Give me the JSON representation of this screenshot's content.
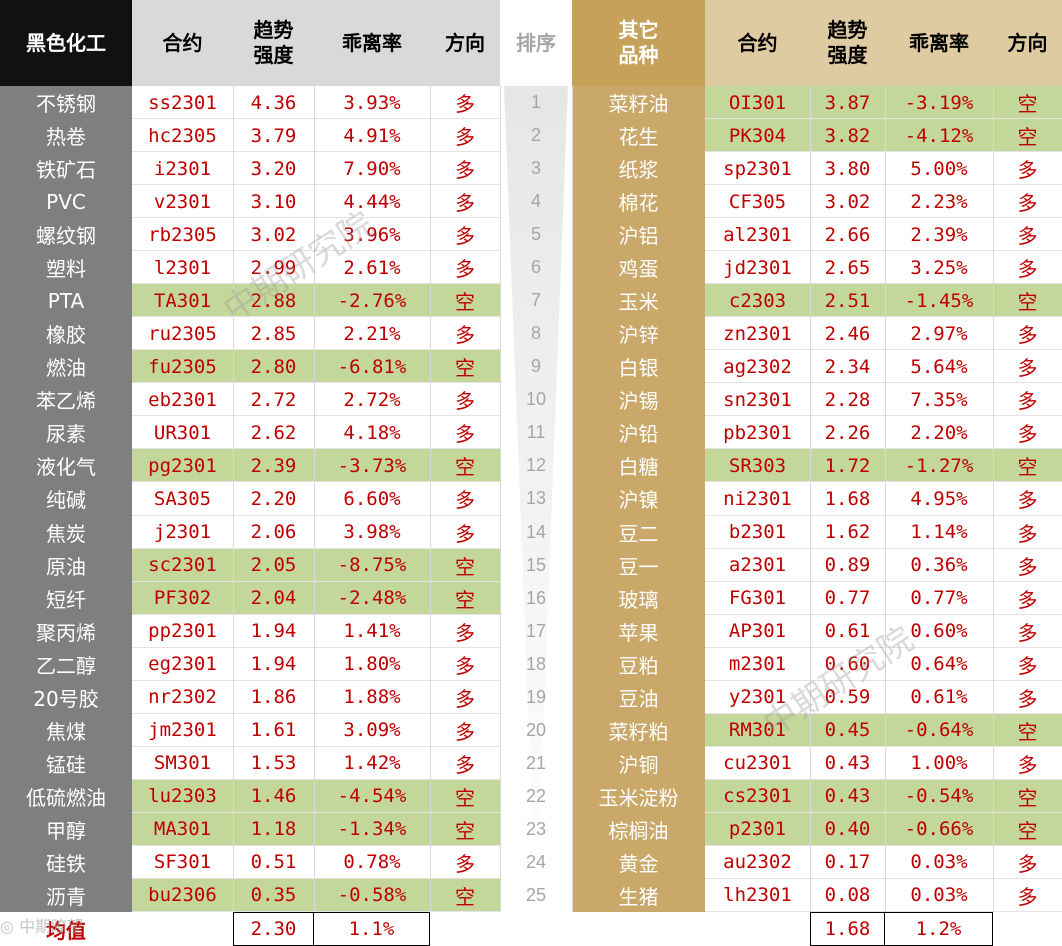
{
  "header": {
    "left_title": "黑色化工",
    "contract": "合约",
    "trend_line1": "趋势",
    "trend_line2": "强度",
    "deviation": "乖离率",
    "direction": "方向",
    "rank": "排序",
    "right_title_line1": "其它",
    "right_title_line2": "品种"
  },
  "left_rows": [
    {
      "name": "不锈钢",
      "contract": "ss2301",
      "strength": "4.36",
      "deviation": "3.93%",
      "direction": "多",
      "short": false
    },
    {
      "name": "热卷",
      "contract": "hc2305",
      "strength": "3.79",
      "deviation": "4.91%",
      "direction": "多",
      "short": false
    },
    {
      "name": "铁矿石",
      "contract": "i2301",
      "strength": "3.20",
      "deviation": "7.90%",
      "direction": "多",
      "short": false
    },
    {
      "name": "PVC",
      "contract": "v2301",
      "strength": "3.10",
      "deviation": "4.44%",
      "direction": "多",
      "short": false
    },
    {
      "name": "螺纹钢",
      "contract": "rb2305",
      "strength": "3.02",
      "deviation": "3.96%",
      "direction": "多",
      "short": false
    },
    {
      "name": "塑料",
      "contract": "l2301",
      "strength": "2.99",
      "deviation": "2.61%",
      "direction": "多",
      "short": false
    },
    {
      "name": "PTA",
      "contract": "TA301",
      "strength": "2.88",
      "deviation": "-2.76%",
      "direction": "空",
      "short": true
    },
    {
      "name": "橡胶",
      "contract": "ru2305",
      "strength": "2.85",
      "deviation": "2.21%",
      "direction": "多",
      "short": false
    },
    {
      "name": "燃油",
      "contract": "fu2305",
      "strength": "2.80",
      "deviation": "-6.81%",
      "direction": "空",
      "short": true
    },
    {
      "name": "苯乙烯",
      "contract": "eb2301",
      "strength": "2.72",
      "deviation": "2.72%",
      "direction": "多",
      "short": false
    },
    {
      "name": "尿素",
      "contract": "UR301",
      "strength": "2.62",
      "deviation": "4.18%",
      "direction": "多",
      "short": false
    },
    {
      "name": "液化气",
      "contract": "pg2301",
      "strength": "2.39",
      "deviation": "-3.73%",
      "direction": "空",
      "short": true
    },
    {
      "name": "纯碱",
      "contract": "SA305",
      "strength": "2.20",
      "deviation": "6.60%",
      "direction": "多",
      "short": false
    },
    {
      "name": "焦炭",
      "contract": "j2301",
      "strength": "2.06",
      "deviation": "3.98%",
      "direction": "多",
      "short": false
    },
    {
      "name": "原油",
      "contract": "sc2301",
      "strength": "2.05",
      "deviation": "-8.75%",
      "direction": "空",
      "short": true
    },
    {
      "name": "短纤",
      "contract": "PF302",
      "strength": "2.04",
      "deviation": "-2.48%",
      "direction": "空",
      "short": true
    },
    {
      "name": "聚丙烯",
      "contract": "pp2301",
      "strength": "1.94",
      "deviation": "1.41%",
      "direction": "多",
      "short": false
    },
    {
      "name": "乙二醇",
      "contract": "eg2301",
      "strength": "1.94",
      "deviation": "1.80%",
      "direction": "多",
      "short": false
    },
    {
      "name": "20号胶",
      "contract": "nr2302",
      "strength": "1.86",
      "deviation": "1.88%",
      "direction": "多",
      "short": false
    },
    {
      "name": "焦煤",
      "contract": "jm2301",
      "strength": "1.61",
      "deviation": "3.09%",
      "direction": "多",
      "short": false
    },
    {
      "name": "锰硅",
      "contract": "SM301",
      "strength": "1.53",
      "deviation": "1.42%",
      "direction": "多",
      "short": false
    },
    {
      "name": "低硫燃油",
      "contract": "lu2303",
      "strength": "1.46",
      "deviation": "-4.54%",
      "direction": "空",
      "short": true
    },
    {
      "name": "甲醇",
      "contract": "MA301",
      "strength": "1.18",
      "deviation": "-1.34%",
      "direction": "空",
      "short": true
    },
    {
      "name": "硅铁",
      "contract": "SF301",
      "strength": "0.51",
      "deviation": "0.78%",
      "direction": "多",
      "short": false
    },
    {
      "name": "沥青",
      "contract": "bu2306",
      "strength": "0.35",
      "deviation": "-0.58%",
      "direction": "空",
      "short": true
    }
  ],
  "ranks": [
    "1",
    "2",
    "3",
    "4",
    "5",
    "6",
    "7",
    "8",
    "9",
    "10",
    "11",
    "12",
    "13",
    "14",
    "15",
    "16",
    "17",
    "18",
    "19",
    "20",
    "21",
    "22",
    "23",
    "24",
    "25"
  ],
  "right_rows": [
    {
      "name": "菜籽油",
      "contract": "OI301",
      "strength": "3.87",
      "deviation": "-3.19%",
      "direction": "空",
      "short": true
    },
    {
      "name": "花生",
      "contract": "PK304",
      "strength": "3.82",
      "deviation": "-4.12%",
      "direction": "空",
      "short": true
    },
    {
      "name": "纸浆",
      "contract": "sp2301",
      "strength": "3.80",
      "deviation": "5.00%",
      "direction": "多",
      "short": false
    },
    {
      "name": "棉花",
      "contract": "CF305",
      "strength": "3.02",
      "deviation": "2.23%",
      "direction": "多",
      "short": false
    },
    {
      "name": "沪铝",
      "contract": "al2301",
      "strength": "2.66",
      "deviation": "2.39%",
      "direction": "多",
      "short": false
    },
    {
      "name": "鸡蛋",
      "contract": "jd2301",
      "strength": "2.65",
      "deviation": "3.25%",
      "direction": "多",
      "short": false
    },
    {
      "name": "玉米",
      "contract": "c2303",
      "strength": "2.51",
      "deviation": "-1.45%",
      "direction": "空",
      "short": true
    },
    {
      "name": "沪锌",
      "contract": "zn2301",
      "strength": "2.46",
      "deviation": "2.97%",
      "direction": "多",
      "short": false
    },
    {
      "name": "白银",
      "contract": "ag2302",
      "strength": "2.34",
      "deviation": "5.64%",
      "direction": "多",
      "short": false
    },
    {
      "name": "沪锡",
      "contract": "sn2301",
      "strength": "2.28",
      "deviation": "7.35%",
      "direction": "多",
      "short": false
    },
    {
      "name": "沪铅",
      "contract": "pb2301",
      "strength": "2.26",
      "deviation": "2.20%",
      "direction": "多",
      "short": false
    },
    {
      "name": "白糖",
      "contract": "SR303",
      "strength": "1.72",
      "deviation": "-1.27%",
      "direction": "空",
      "short": true
    },
    {
      "name": "沪镍",
      "contract": "ni2301",
      "strength": "1.68",
      "deviation": "4.95%",
      "direction": "多",
      "short": false
    },
    {
      "name": "豆二",
      "contract": "b2301",
      "strength": "1.62",
      "deviation": "1.14%",
      "direction": "多",
      "short": false
    },
    {
      "name": "豆一",
      "contract": "a2301",
      "strength": "0.89",
      "deviation": "0.36%",
      "direction": "多",
      "short": false
    },
    {
      "name": "玻璃",
      "contract": "FG301",
      "strength": "0.77",
      "deviation": "0.77%",
      "direction": "多",
      "short": false
    },
    {
      "name": "苹果",
      "contract": "AP301",
      "strength": "0.61",
      "deviation": "0.60%",
      "direction": "多",
      "short": false
    },
    {
      "name": "豆粕",
      "contract": "m2301",
      "strength": "0.60",
      "deviation": "0.64%",
      "direction": "多",
      "short": false
    },
    {
      "name": "豆油",
      "contract": "y2301",
      "strength": "0.59",
      "deviation": "0.61%",
      "direction": "多",
      "short": false
    },
    {
      "name": "菜籽粕",
      "contract": "RM301",
      "strength": "0.45",
      "deviation": "-0.64%",
      "direction": "空",
      "short": true
    },
    {
      "name": "沪铜",
      "contract": "cu2301",
      "strength": "0.43",
      "deviation": "1.00%",
      "direction": "多",
      "short": false
    },
    {
      "name": "玉米淀粉",
      "contract": "cs2301",
      "strength": "0.43",
      "deviation": "-0.54%",
      "direction": "空",
      "short": true
    },
    {
      "name": "棕榈油",
      "contract": "p2301",
      "strength": "0.40",
      "deviation": "-0.66%",
      "direction": "空",
      "short": true
    },
    {
      "name": "黄金",
      "contract": "au2302",
      "strength": "0.17",
      "deviation": "0.03%",
      "direction": "多",
      "short": false
    },
    {
      "name": "生猪",
      "contract": "lh2301",
      "strength": "0.08",
      "deviation": "0.03%",
      "direction": "多",
      "short": false
    }
  ],
  "footer": {
    "label": "均值",
    "left_strength_avg": "2.30",
    "left_deviation_avg": "1.1%",
    "right_strength_avg": "1.68",
    "right_deviation_avg": "1.2%"
  },
  "watermark": "中期研究院",
  "logo_text": "中期瞭望",
  "colors": {
    "header_black": "#111111",
    "header_gray": "#d9d9d9",
    "header_gold": "#c5a15a",
    "header_gold_light": "#dfcba2",
    "left_name_bg": "#7f7f7f",
    "right_name_bg": "#c9a86a",
    "short_row_bg": "#c4d79b",
    "value_red": "#c00000"
  }
}
